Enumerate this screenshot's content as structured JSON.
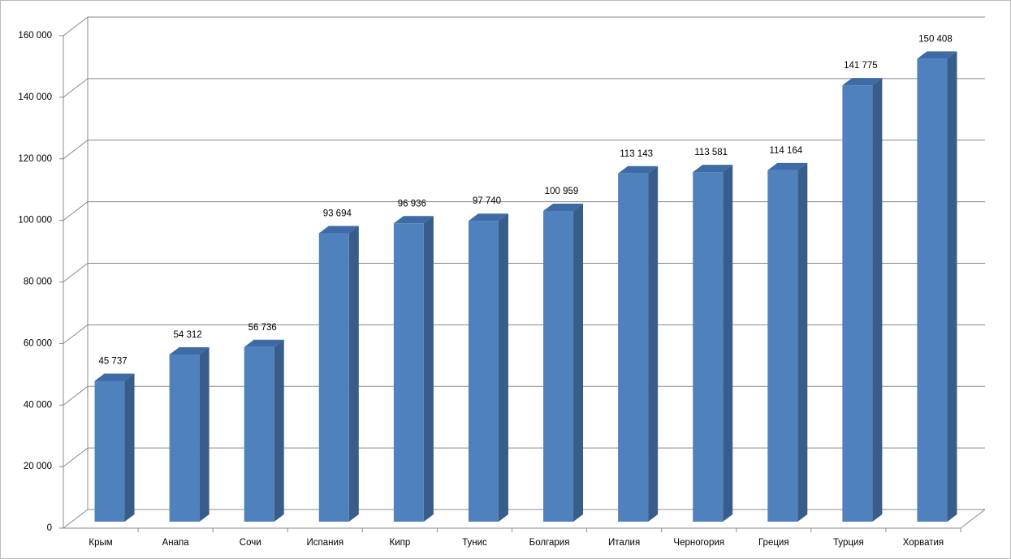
{
  "chart_data": {
    "type": "bar3d",
    "categories": [
      "Крым",
      "Анапа",
      "Сочи",
      "Испания",
      "Кипр",
      "Тунис",
      "Болгария",
      "Италия",
      "Черногория",
      "Греция",
      "Турция",
      "Хорватия"
    ],
    "values": [
      45737,
      54312,
      56736,
      93694,
      96936,
      97740,
      100959,
      113143,
      113581,
      114164,
      141775,
      150408
    ],
    "value_labels": [
      "45 737",
      "54 312",
      "56 736",
      "93 694",
      "96 936",
      "97 740",
      "100 959",
      "113 143",
      "113 581",
      "114 164",
      "141 775",
      "150 408"
    ],
    "color": "#4f81bd",
    "ylim": [
      0,
      160000
    ],
    "yticks": [
      0,
      {
        "value": 20000,
        "label": "20 000"
      },
      {
        "value": 40000,
        "label": "40 000"
      },
      {
        "value": 60000,
        "label": "60 000"
      },
      {
        "value": 80000,
        "label": "80 000"
      },
      {
        "value": 100000,
        "label": "100 000"
      },
      {
        "value": 120000,
        "label": "120 000"
      },
      {
        "value": 140000,
        "label": "140 000"
      },
      {
        "value": 160000,
        "label": "160 000"
      }
    ],
    "grid": true
  }
}
